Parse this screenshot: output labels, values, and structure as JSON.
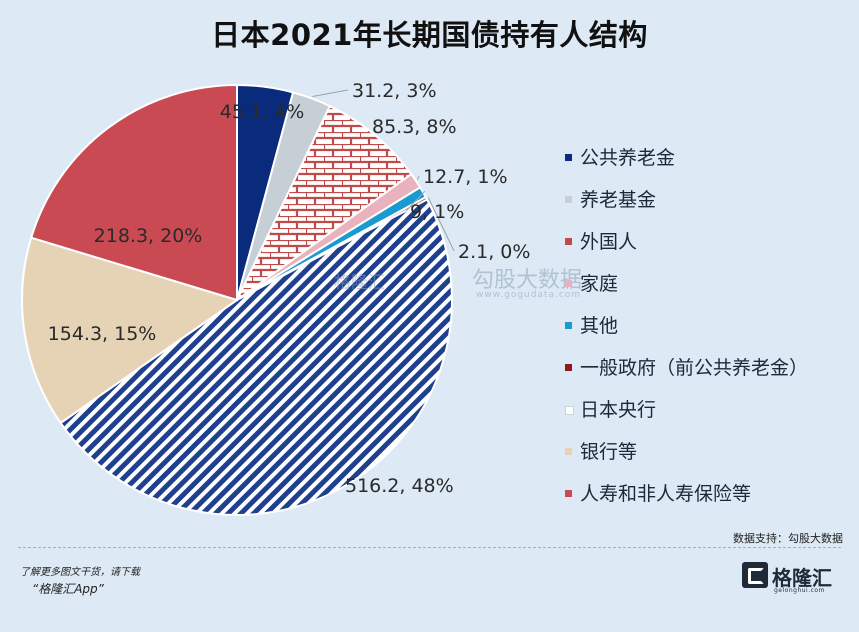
{
  "chart_data": {
    "type": "pie",
    "title": "日本2021年长期国债持有人结构",
    "slices": [
      {
        "name": "公共养老金",
        "value": 45.1,
        "percent": 4,
        "label": "45.1, 4%",
        "color": "#0a2a7c",
        "pattern": "solid"
      },
      {
        "name": "养老基金",
        "value": 31.2,
        "percent": 3,
        "label": "31.2, 3%",
        "color": "#c7cfd6",
        "pattern": "solid"
      },
      {
        "name": "外国人",
        "value": 85.3,
        "percent": 8,
        "label": "85.3, 8%",
        "color": "#c04a4a",
        "pattern": "brick"
      },
      {
        "name": "家庭",
        "value": 12.7,
        "percent": 1,
        "label": "12.7, 1%",
        "color": "#e8b3bc",
        "pattern": "solid"
      },
      {
        "name": "其他",
        "value": 9,
        "percent": 1,
        "label": "9, 1%",
        "color": "#1a9ad0",
        "pattern": "solid"
      },
      {
        "name": "一般政府（前公共养老金）",
        "value": 2.1,
        "percent": 0,
        "label": "2.1, 0%",
        "color": "#8b1a1a",
        "pattern": "solid"
      },
      {
        "name": "日本央行",
        "value": 516.2,
        "percent": 48,
        "label": "516.2, 48%",
        "color": "#1f3f8f",
        "pattern": "stripe"
      },
      {
        "name": "银行等",
        "value": 154.3,
        "percent": 15,
        "label": "154.3, 15%",
        "color": "#e6d3b6",
        "pattern": "solid"
      },
      {
        "name": "人寿和非人寿保险等",
        "value": 218.3,
        "percent": 20,
        "label": "218.3, 20%",
        "color": "#c94a52",
        "pattern": "solid"
      }
    ],
    "legend_position": "right"
  },
  "source_note": "数据支持：勾股大数据",
  "footer": {
    "note": "了解更多图文干货，请下载",
    "app": "“格隆汇App”"
  },
  "logo": {
    "text": "格隆汇",
    "sub": "gelonghui.com"
  },
  "watermark": {
    "brand": "格隆汇",
    "name": "勾股大数据",
    "url": "www.gogudata.com"
  }
}
